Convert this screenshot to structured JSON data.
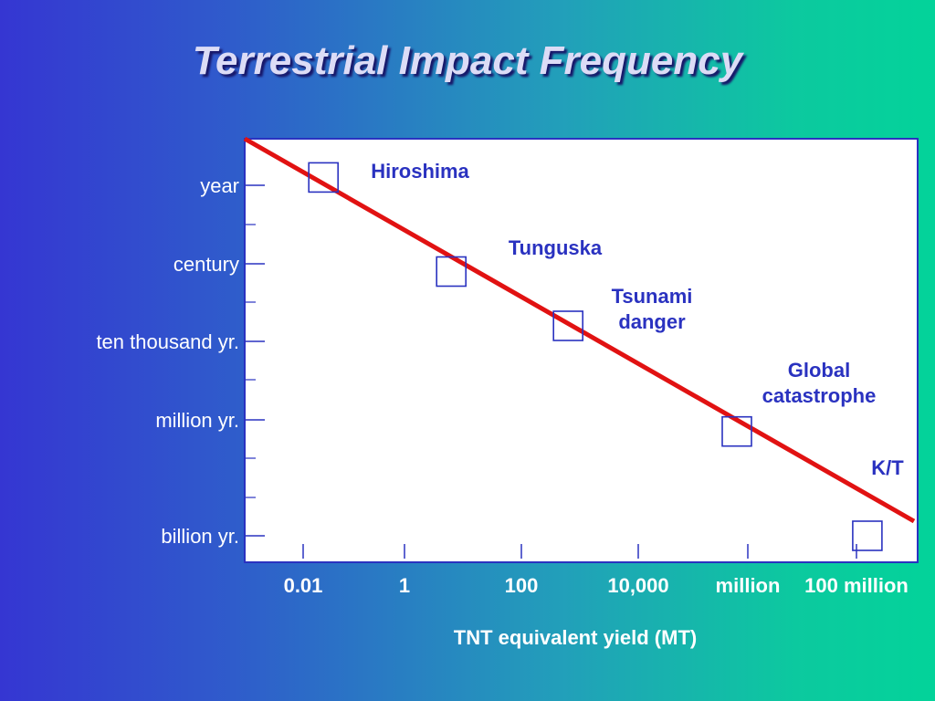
{
  "title": "Terrestrial Impact Frequency",
  "colors": {
    "plot_background": "#ffffff",
    "plot_border": "#2a32c0",
    "trend_line": "#e11212",
    "marker": "#2a32c0",
    "annotation_text": "#2a32c0",
    "axis_text": "#ffffff"
  },
  "chart_data": {
    "type": "line",
    "title": "Terrestrial Impact Frequency",
    "xlabel": "TNT equivalent yield (MT)",
    "ylabel": "",
    "x_scale": "log",
    "y_scale": "log",
    "x_ticks": [
      "0.01",
      "1",
      "100",
      "10,000",
      "million",
      "100 million"
    ],
    "y_ticks": [
      "year",
      "century",
      "ten thousand yr.",
      "million yr.",
      "billion yr."
    ],
    "grid": false,
    "legend": "none",
    "trend_line": {
      "description": "diagonal red line, higher yield = rarer impact"
    },
    "events": [
      {
        "label": "Hiroshima",
        "x_tick_pos": 0.2,
        "y_tick_pos": -0.1
      },
      {
        "label": "Tunguska",
        "x_tick_pos": 1.4,
        "y_tick_pos": 1.1
      },
      {
        "label": "Tsunami danger",
        "x_tick_pos": 2.4,
        "y_tick_pos": 1.8
      },
      {
        "label": "Global catastrophe",
        "x_tick_pos": 3.9,
        "y_tick_pos": 3.1
      },
      {
        "label": "K/T",
        "x_tick_pos": 5.1,
        "y_tick_pos": 4.0
      }
    ]
  }
}
